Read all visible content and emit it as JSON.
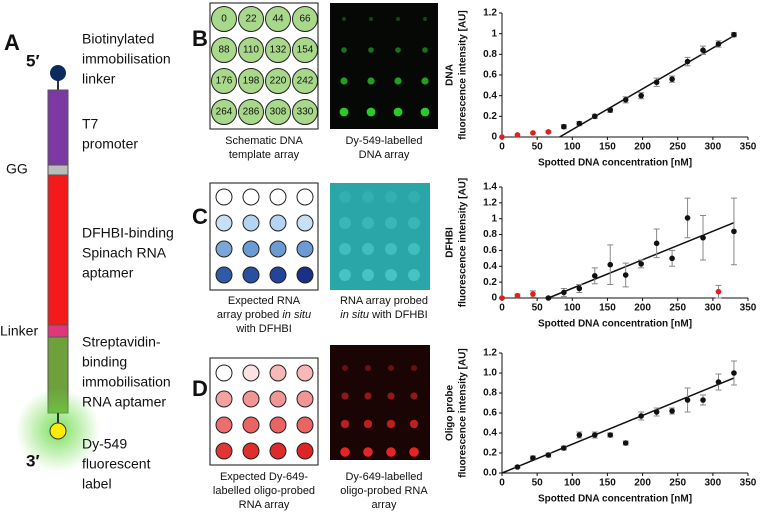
{
  "panel_a": {
    "letter": "A",
    "five_prime": "5′",
    "three_prime": "3′",
    "gg": "GG",
    "linker": "Linker",
    "labels": [
      [
        "Biotinylated",
        "immobilisation",
        "linker"
      ],
      [
        "T7",
        "promoter"
      ],
      [
        "DFHBI-binding",
        "Spinach RNA",
        "aptamer"
      ],
      [
        "Streptavidin-",
        "binding",
        "immobilisation",
        "RNA aptamer"
      ],
      [
        "Dy-549",
        "fluorescent",
        "label"
      ]
    ]
  },
  "panel_b": {
    "letter": "B",
    "schematic_labels": [
      "0",
      "22",
      "44",
      "66",
      "88",
      "110",
      "132",
      "154",
      "176",
      "198",
      "220",
      "242",
      "264",
      "286",
      "308",
      "330"
    ],
    "caption_left": [
      "Schematic DNA",
      "template array"
    ],
    "caption_right": [
      "Dy-549-labelled",
      "DNA array"
    ]
  },
  "panel_c": {
    "letter": "C",
    "circle_colors": [
      "#ffffff",
      "#ffffff",
      "#ffffff",
      "#ffffff",
      "#c7e0f7",
      "#b3d4f3",
      "#b3d4f3",
      "#c7e0f7",
      "#7aa7d8",
      "#6c9bd3",
      "#6c9bd3",
      "#6c9bd3",
      "#2f5aa6",
      "#2a4f9c",
      "#22449a",
      "#1a2f86"
    ],
    "caption_left": [
      "Expected RNA",
      "array probed ",
      "in situ",
      "with DFHBI"
    ],
    "caption_right": [
      "RNA array probed",
      "in situ",
      " with DFHBI"
    ]
  },
  "panel_d": {
    "letter": "D",
    "circle_colors": [
      "#ffffff",
      "#fce3e3",
      "#f7b8b8",
      "#f7b8b8",
      "#f3a2a2",
      "#f19595",
      "#f19595",
      "#f19595",
      "#ed6e6e",
      "#ea6464",
      "#ea6464",
      "#ea6464",
      "#e03535",
      "#e02e2e",
      "#de2a2a",
      "#dd2525"
    ],
    "caption_left": [
      "Expected Dy-649-",
      "labelled oligo-probed",
      "RNA array"
    ],
    "caption_right": [
      "Dy-649-labelled",
      "oligo-probed RNA",
      "array"
    ]
  },
  "chart_data": [
    {
      "type": "scatter",
      "y_label": [
        "DNA",
        "fluorescence intensity [AU]"
      ],
      "x_label": "Spotted DNA concentration [nM]",
      "xlim": [
        0,
        350
      ],
      "xticks": [
        0,
        50,
        100,
        150,
        200,
        250,
        300,
        350
      ],
      "ylim": [
        0,
        1.2
      ],
      "yticks": [
        0,
        0.2,
        0.4,
        0.6,
        0.8,
        1,
        1.2
      ],
      "series": [
        {
          "color": "#e02020",
          "x": [
            0,
            22,
            44,
            66
          ],
          "values": [
            0,
            0.02,
            0.04,
            0.05
          ],
          "errors": [
            0,
            0,
            0,
            0.01
          ]
        },
        {
          "color": "#111111",
          "x": [
            88,
            110,
            132,
            154,
            176,
            198,
            220,
            242,
            264,
            286,
            308,
            330
          ],
          "values": [
            0.1,
            0.13,
            0.2,
            0.26,
            0.36,
            0.4,
            0.53,
            0.56,
            0.73,
            0.84,
            0.9,
            0.99
          ],
          "errors": [
            0.02,
            0.02,
            0.02,
            0.02,
            0.03,
            0.03,
            0.04,
            0.03,
            0.04,
            0.04,
            0.03,
            0.02
          ]
        }
      ],
      "trendline": {
        "color": "#111111",
        "x": [
          82,
          330
        ],
        "values": [
          0,
          0.98
        ]
      }
    },
    {
      "type": "scatter",
      "y_label": [
        "DFHBI",
        "fluorescence intensity [AU]"
      ],
      "x_label": "Spotted DNA concentration [nM]",
      "xlim": [
        0,
        350
      ],
      "xticks": [
        0,
        50,
        100,
        150,
        200,
        250,
        300,
        350
      ],
      "ylim": [
        0,
        1.4
      ],
      "yticks": [
        0,
        0.2,
        0.4,
        0.6,
        0.8,
        1,
        1.2,
        1.4
      ],
      "series": [
        {
          "color": "#e02020",
          "x": [
            0,
            22,
            44,
            308
          ],
          "values": [
            0,
            0.03,
            0.05,
            0.08
          ],
          "errors": [
            0.01,
            0.02,
            0.04,
            0.08
          ]
        },
        {
          "color": "#111111",
          "x": [
            66,
            88,
            110,
            132,
            154,
            176,
            198,
            220,
            242,
            264,
            286,
            330
          ],
          "values": [
            0,
            0.07,
            0.12,
            0.28,
            0.42,
            0.29,
            0.43,
            0.69,
            0.5,
            1.01,
            0.76,
            0.84
          ],
          "errors": [
            0.01,
            0.05,
            0.05,
            0.1,
            0.25,
            0.15,
            0.05,
            0.18,
            0.1,
            0.25,
            0.28,
            0.42
          ]
        }
      ],
      "trendline": {
        "color": "#111111",
        "x": [
          66,
          330
        ],
        "values": [
          0,
          0.95
        ]
      }
    },
    {
      "type": "scatter",
      "y_label": [
        "Oligo probe",
        "fluorescence intensity [AU]"
      ],
      "x_label": "Spotted DNA concentration [nM]",
      "xlim": [
        0,
        350
      ],
      "xticks": [
        0,
        50,
        100,
        150,
        200,
        250,
        300,
        350
      ],
      "ylim": [
        0,
        1.2
      ],
      "yticks": [
        {
          "value": 0,
          "label": "0.0"
        },
        {
          "value": 0.2,
          "label": "0.2"
        },
        {
          "value": 0.4,
          "label": "0.4"
        },
        {
          "value": 0.6,
          "label": "0.6"
        },
        {
          "value": 0.8,
          "label": "0.8"
        },
        {
          "value": 1,
          "label": "1.0"
        },
        {
          "value": 1.2,
          "label": "1.2"
        }
      ],
      "series": [
        {
          "color": "#111111",
          "x": [
            22,
            44,
            66,
            88,
            110,
            132,
            154,
            176,
            198,
            220,
            242,
            264,
            286,
            308,
            330
          ],
          "values": [
            0.06,
            0.15,
            0.18,
            0.25,
            0.38,
            0.38,
            0.38,
            0.3,
            0.57,
            0.61,
            0.62,
            0.73,
            0.73,
            0.91,
            1
          ],
          "errors": [
            0.01,
            0.02,
            0.02,
            0.02,
            0.03,
            0.03,
            0.02,
            0.02,
            0.04,
            0.04,
            0.03,
            0.12,
            0.05,
            0.08,
            0.12
          ]
        }
      ],
      "trendline": {
        "color": "#111111",
        "x": [
          0,
          330
        ],
        "values": [
          0,
          0.95
        ]
      }
    }
  ]
}
